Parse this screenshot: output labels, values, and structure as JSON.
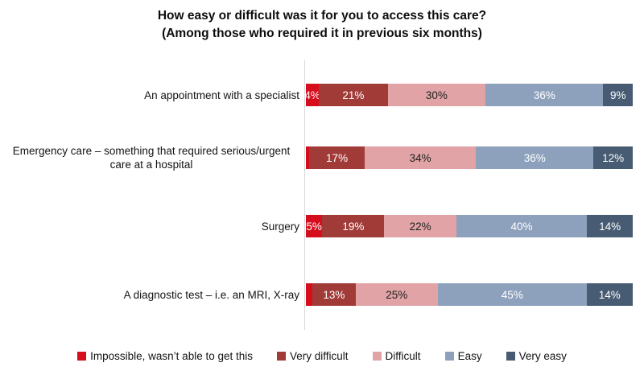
{
  "title": {
    "line1": "How easy or difficult was it for you to access this care?",
    "line2": "(Among those who required it in previous six months)"
  },
  "colors": {
    "impossible": "#d60d1c",
    "very_difficult": "#a13b38",
    "difficult": "#e1a3a5",
    "easy": "#8da1bd",
    "very_easy": "#475b72",
    "axis_line": "#d9d9d9",
    "dark_label_text": "#1f1f1f",
    "light_label_text": "#ffffff"
  },
  "chart_data": {
    "type": "bar",
    "orientation": "horizontal",
    "stacked": true,
    "value_unit": "%",
    "title": "How easy or difficult was it for you to access this care? (Among those who required it in previous six months)",
    "categories": [
      "An appointment with a specialist",
      "Emergency care – something that required serious/urgent care at a hospital",
      "Surgery",
      "A diagnostic test – i.e. an MRI, X-ray"
    ],
    "series": [
      {
        "name": "Impossible, wasn’t able to get this",
        "color": "#d60d1c",
        "label_color": "#ffffff",
        "values": [
          4,
          1,
          5,
          2
        ]
      },
      {
        "name": "Very difficult",
        "color": "#a13b38",
        "label_color": "#ffffff",
        "values": [
          21,
          17,
          19,
          13
        ]
      },
      {
        "name": "Difficult",
        "color": "#e1a3a5",
        "label_color": "#1f1f1f",
        "values": [
          30,
          34,
          22,
          25
        ]
      },
      {
        "name": "Easy",
        "color": "#8da1bd",
        "label_color": "#ffffff",
        "values": [
          36,
          36,
          40,
          45
        ]
      },
      {
        "name": "Very easy",
        "color": "#475b72",
        "label_color": "#ffffff",
        "values": [
          9,
          12,
          14,
          14
        ]
      }
    ],
    "data_labels_shown_at_or_above": 3,
    "xlim": [
      0,
      100
    ],
    "grid": false,
    "legend_position": "bottom"
  }
}
